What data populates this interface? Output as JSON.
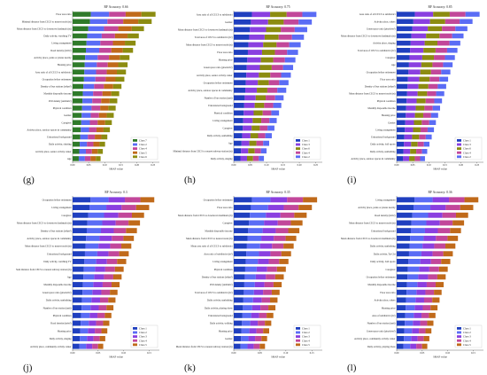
{
  "figure": {
    "colors": {
      "Class 1": "#1f3fbf",
      "Class 2": "#5a6cf5",
      "Class 3": "#8a3fe0",
      "Class 4": "#c2479a",
      "Class 5": "#c06a1a",
      "Class 6": "#8c8c10",
      "Class 7": "#2f7a2a"
    }
  },
  "chart_data": [
    {
      "type": "bar",
      "stacked": true,
      "orientation": "horizontal",
      "title": "RF Accuracy: 0.66",
      "panel_label": "(g)",
      "xlabel": "SHAP value",
      "xticks": [
        "0.00",
        "0.05",
        "0.10",
        "0.15",
        "0.20",
        "0.25"
      ],
      "xlim": [
        0,
        0.27
      ],
      "categories": [
        "Floor area ratio",
        "Minimal distance from CECS to nearest node (m)",
        "Mean distance from CECS to downtown landmark (m)",
        "Daily activity, watching TV",
        "Living arrangement",
        "Road density (m/m²)",
        "Activity place, parks or plazas nearby",
        "Housing price",
        "Area ratio of all CECS to subdistrict",
        "Occupation before retirement",
        "Density of bus stations (n/km²)",
        "Monthly disposable income",
        "POI density (unit/km²)",
        "Physical condition",
        "Gender",
        "Caregiver",
        "Activity place, outdoor spaces in community",
        "Educational background",
        "Daily activity, chatting",
        "Activity place, senior activity center",
        "Age"
      ],
      "totals": [
        0.258,
        0.246,
        0.222,
        0.206,
        0.196,
        0.188,
        0.177,
        0.171,
        0.166,
        0.161,
        0.152,
        0.145,
        0.139,
        0.134,
        0.128,
        0.122,
        0.116,
        0.108,
        0.101,
        0.094,
        0.087
      ],
      "series": [
        {
          "name": "Class 7"
        },
        {
          "name": "Class 2"
        },
        {
          "name": "Class 4"
        },
        {
          "name": "Class 5"
        },
        {
          "name": "Class 6"
        }
      ],
      "legend_position": "lower-right"
    },
    {
      "type": "bar",
      "stacked": true,
      "orientation": "horizontal",
      "title": "RF Accuracy: 0.75",
      "panel_label": "(h)",
      "xlabel": "SHAP value",
      "xticks": [
        "0.00",
        "0.05",
        "0.10",
        "0.15",
        "0.20",
        "0.25"
      ],
      "xlim": [
        0,
        0.27
      ],
      "categories": [
        "Area ratio of all CECS to subdistrict",
        "Gender",
        "Mean distance from CECS to downtown landmark (m)",
        "Total area of CECS to subdistrict (m²)",
        "Mean distance from CECS to nearest node (m)",
        "Floor area ratio",
        "Housing price",
        "Green space ratio (pixels/m²)",
        "Activity place, senior activity center",
        "Occupation before retirement",
        "Activity place, outdoor spaces in community",
        "Number of bus station (unit)",
        "Educational background",
        "Physical condition",
        "Living arrangement",
        "Caregiver",
        "Daily activity, sunbathing",
        "Age",
        "Minimal distance from CECS to nearest subway station (m)",
        "Daily activity, singing"
      ],
      "totals": [
        0.252,
        0.238,
        0.224,
        0.214,
        0.204,
        0.196,
        0.188,
        0.181,
        0.174,
        0.167,
        0.16,
        0.152,
        0.145,
        0.138,
        0.131,
        0.124,
        0.116,
        0.108,
        0.1,
        0.092
      ],
      "series": [
        {
          "name": "Class 1"
        },
        {
          "name": "Class 3"
        },
        {
          "name": "Class 6"
        },
        {
          "name": "Class 4"
        },
        {
          "name": "Class 2"
        }
      ],
      "legend_position": "lower-right"
    },
    {
      "type": "bar",
      "stacked": true,
      "orientation": "horizontal",
      "title": "RF Accuracy: 0.85",
      "panel_label": "(i)",
      "xlabel": "SHAP value",
      "xticks": [
        "0.00",
        "0.05",
        "0.10",
        "0.15",
        "0.20",
        "0.25"
      ],
      "xlim": [
        0,
        0.27
      ],
      "categories": [
        "Area ratio of all CECS to subdistrict",
        "Activity place, others",
        "Green space ratio (pixels/m²)",
        "Mean distance from CECS to downtown landmark (m)",
        "Activity place, singing",
        "Total area of CECS to subdistrict (m²)",
        "Caregiver",
        "Age",
        "Occupation before retirement",
        "Floor area ratio",
        "Density of bus stations (n/km²)",
        "Mean distance from CECS to nearest node (m)",
        "Physical condition",
        "Monthly disposable income",
        "Housing price",
        "Gender",
        "Living arrangement",
        "Educational background",
        "Daily activity, ball sports",
        "Daily activity, sunbathing",
        "Activity place, outdoor spaces in community"
      ],
      "totals": [
        0.258,
        0.236,
        0.22,
        0.208,
        0.198,
        0.189,
        0.181,
        0.174,
        0.167,
        0.16,
        0.154,
        0.148,
        0.141,
        0.135,
        0.129,
        0.122,
        0.116,
        0.109,
        0.102,
        0.095,
        0.088
      ],
      "series": [
        {
          "name": "Class 1"
        },
        {
          "name": "Class 3"
        },
        {
          "name": "Class 6"
        },
        {
          "name": "Class 4"
        },
        {
          "name": "Class 2"
        }
      ],
      "legend_position": "lower-right"
    },
    {
      "type": "bar",
      "stacked": true,
      "orientation": "horizontal",
      "title": "RF Accuracy: 0.3",
      "panel_label": "(j)",
      "xlabel": "SHAP value",
      "xticks": [
        "0.00",
        "0.05",
        "0.10",
        "0.15"
      ],
      "xlim": [
        0,
        0.17
      ],
      "categories": [
        "Occupation before retirement",
        "Living arrangement",
        "Caregiver",
        "Mean distance from CECS to downtown landmark (m)",
        "Density of bus stations (n/km²)",
        "Activity place, outdoor spaces in community",
        "Mean distance from CECS to nearest node (m)",
        "Educational background",
        "Daily activity, watching TV",
        "Sum distance from CECS to nearest subway station (m)",
        "Age",
        "Monthly disposable income",
        "Green space ratio (pixels/m²)",
        "Daily activity, sunbathing",
        "Number of bus station (unit)",
        "Physical condition",
        "Road density (m/m²)",
        "Housing price",
        "Daily activity, singing",
        "Activity place, community activity center"
      ],
      "totals": [
        0.16,
        0.15,
        0.14,
        0.132,
        0.126,
        0.12,
        0.115,
        0.11,
        0.105,
        0.1,
        0.096,
        0.092,
        0.088,
        0.084,
        0.08,
        0.076,
        0.072,
        0.068,
        0.064,
        0.06
      ],
      "series": [
        {
          "name": "Class 1"
        },
        {
          "name": "Class 2"
        },
        {
          "name": "Class 3"
        },
        {
          "name": "Class 4"
        },
        {
          "name": "Class 5"
        }
      ],
      "legend_position": "lower-right"
    },
    {
      "type": "bar",
      "stacked": true,
      "orientation": "horizontal",
      "title": "RF Accuracy: 0.35",
      "panel_label": "(k)",
      "xlabel": "SHAP value",
      "xticks": [
        "0.00",
        "0.05",
        "0.10",
        "0.15"
      ],
      "xlim": [
        0,
        0.17
      ],
      "categories": [
        "Occupation before retirement",
        "Floor area ratio",
        "Mean distance from CECS to downtown landmark (m)",
        "Caregiver",
        "Monthly disposable income",
        "Mean distance from CECS to nearest node (m)",
        "Mean area ratio of all CECS to subdistrict",
        "Area ratio of subdistrict (m²)",
        "Living arrangement",
        "Physical condition",
        "Density of bus stations (n/km²)",
        "POI density (unit/km²)",
        "Total area of CECS to subdistrict (m²)",
        "Daily activity, sunbathing",
        "Daily activity, playing chess",
        "Educational background",
        "Daily activity, walking",
        "Housing price",
        "Gender",
        "Mean distance from CECS to nearest subway station (m)"
      ],
      "totals": [
        0.16,
        0.15,
        0.14,
        0.132,
        0.126,
        0.12,
        0.115,
        0.11,
        0.105,
        0.1,
        0.096,
        0.092,
        0.088,
        0.084,
        0.08,
        0.076,
        0.072,
        0.068,
        0.064,
        0.06
      ],
      "series": [
        {
          "name": "Class 1"
        },
        {
          "name": "Class 2"
        },
        {
          "name": "Class 3"
        },
        {
          "name": "Class 4"
        },
        {
          "name": "Class 5"
        }
      ],
      "legend_position": "lower-right"
    },
    {
      "type": "bar",
      "stacked": true,
      "orientation": "horizontal",
      "title": "RF Accuracy: 0.36",
      "panel_label": "(l)",
      "xlabel": "SHAP value",
      "xticks": [
        "0.00",
        "0.05",
        "0.10",
        "0.15"
      ],
      "xlim": [
        0,
        0.17
      ],
      "categories": [
        "Living arrangement",
        "Activity place, parks or plazas nearby",
        "Road density (m/m²)",
        "Mean distance from CECS to nearest node (m)",
        "Educational background",
        "Mean distance from CECS to downtown landmark (m)",
        "Daily activity, sunbathing",
        "Daily activity, Tai Chi",
        "Daily activity, ball sports",
        "Caregiver",
        "Occupation before retirement",
        "Monthly disposable income",
        "Floor area ratio",
        "Activity place, others",
        "Housing price",
        "Area of subdistrict (m²)",
        "Number of bus station (unit)",
        "Green space ratio (pixels/m²)",
        "Activity place, community activity center",
        "Daily activity, playing chess"
      ],
      "totals": [
        0.16,
        0.15,
        0.14,
        0.132,
        0.126,
        0.12,
        0.115,
        0.11,
        0.105,
        0.1,
        0.096,
        0.092,
        0.088,
        0.084,
        0.08,
        0.076,
        0.072,
        0.068,
        0.064,
        0.06
      ],
      "series": [
        {
          "name": "Class 1"
        },
        {
          "name": "Class 2"
        },
        {
          "name": "Class 3"
        },
        {
          "name": "Class 4"
        },
        {
          "name": "Class 5"
        }
      ],
      "legend_position": "lower-right"
    }
  ]
}
